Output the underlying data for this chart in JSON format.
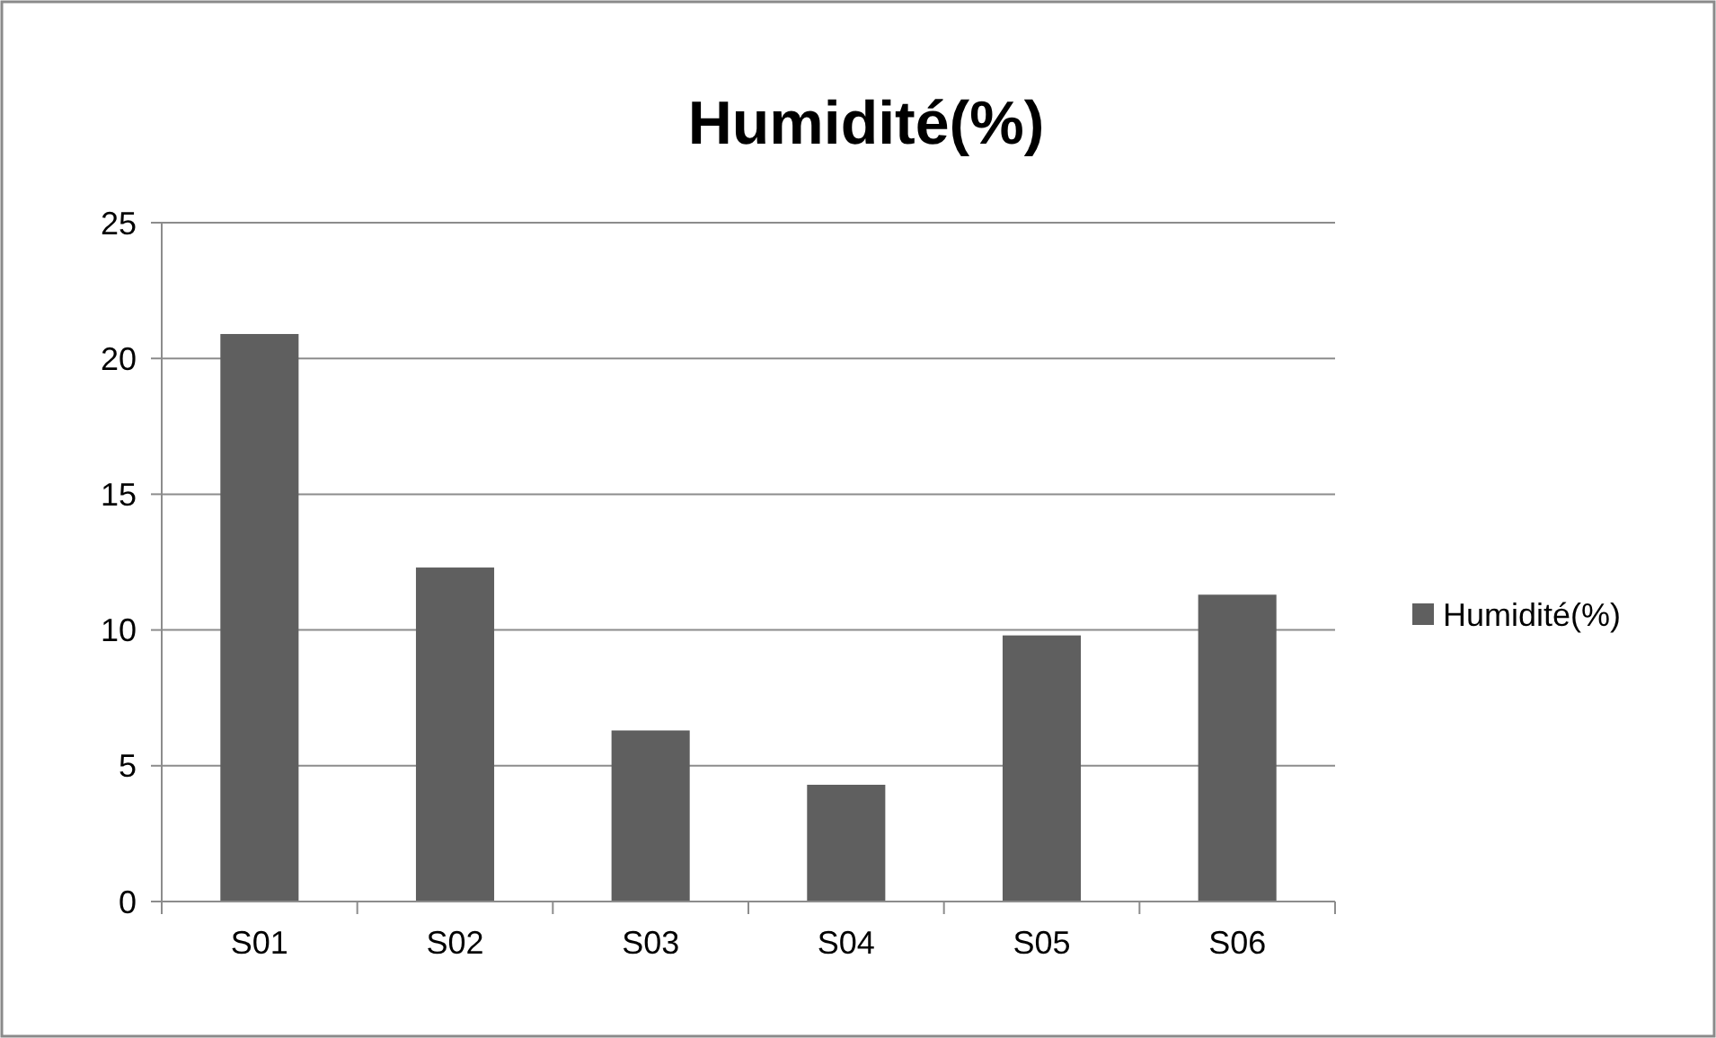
{
  "chart_data": {
    "type": "bar",
    "title": "Humidité(%)",
    "categories": [
      "S01",
      "S02",
      "S03",
      "S04",
      "S05",
      "S06"
    ],
    "series": [
      {
        "name": "Humidité(%)",
        "color": "#5f5f5f",
        "values": [
          20.9,
          12.3,
          6.3,
          4.3,
          9.8,
          11.3
        ]
      }
    ],
    "ylim": [
      0,
      25
    ],
    "yticks": [
      0,
      5,
      10,
      15,
      20,
      25
    ],
    "grid": "y",
    "legend": "right"
  }
}
